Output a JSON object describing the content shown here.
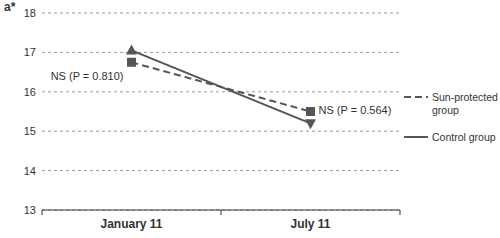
{
  "chart_data": {
    "type": "line",
    "y_label": "a*",
    "categories": [
      "January 11",
      "July 11"
    ],
    "series": [
      {
        "name": "Sun-protected group",
        "color": "#555555",
        "line_style": "dashed",
        "marker": "square",
        "values": [
          16.75,
          15.5
        ]
      },
      {
        "name": "Control group",
        "color": "#555555",
        "line_style": "solid",
        "marker": "triangle",
        "values": [
          17.05,
          15.2
        ]
      }
    ],
    "annotations": [
      "NS (P = 0.810)",
      "NS (P = 0.564)"
    ],
    "ylim": [
      13,
      18
    ],
    "yticks": [
      13,
      14,
      15,
      16,
      17,
      18
    ],
    "grid": true,
    "legend": "right"
  }
}
